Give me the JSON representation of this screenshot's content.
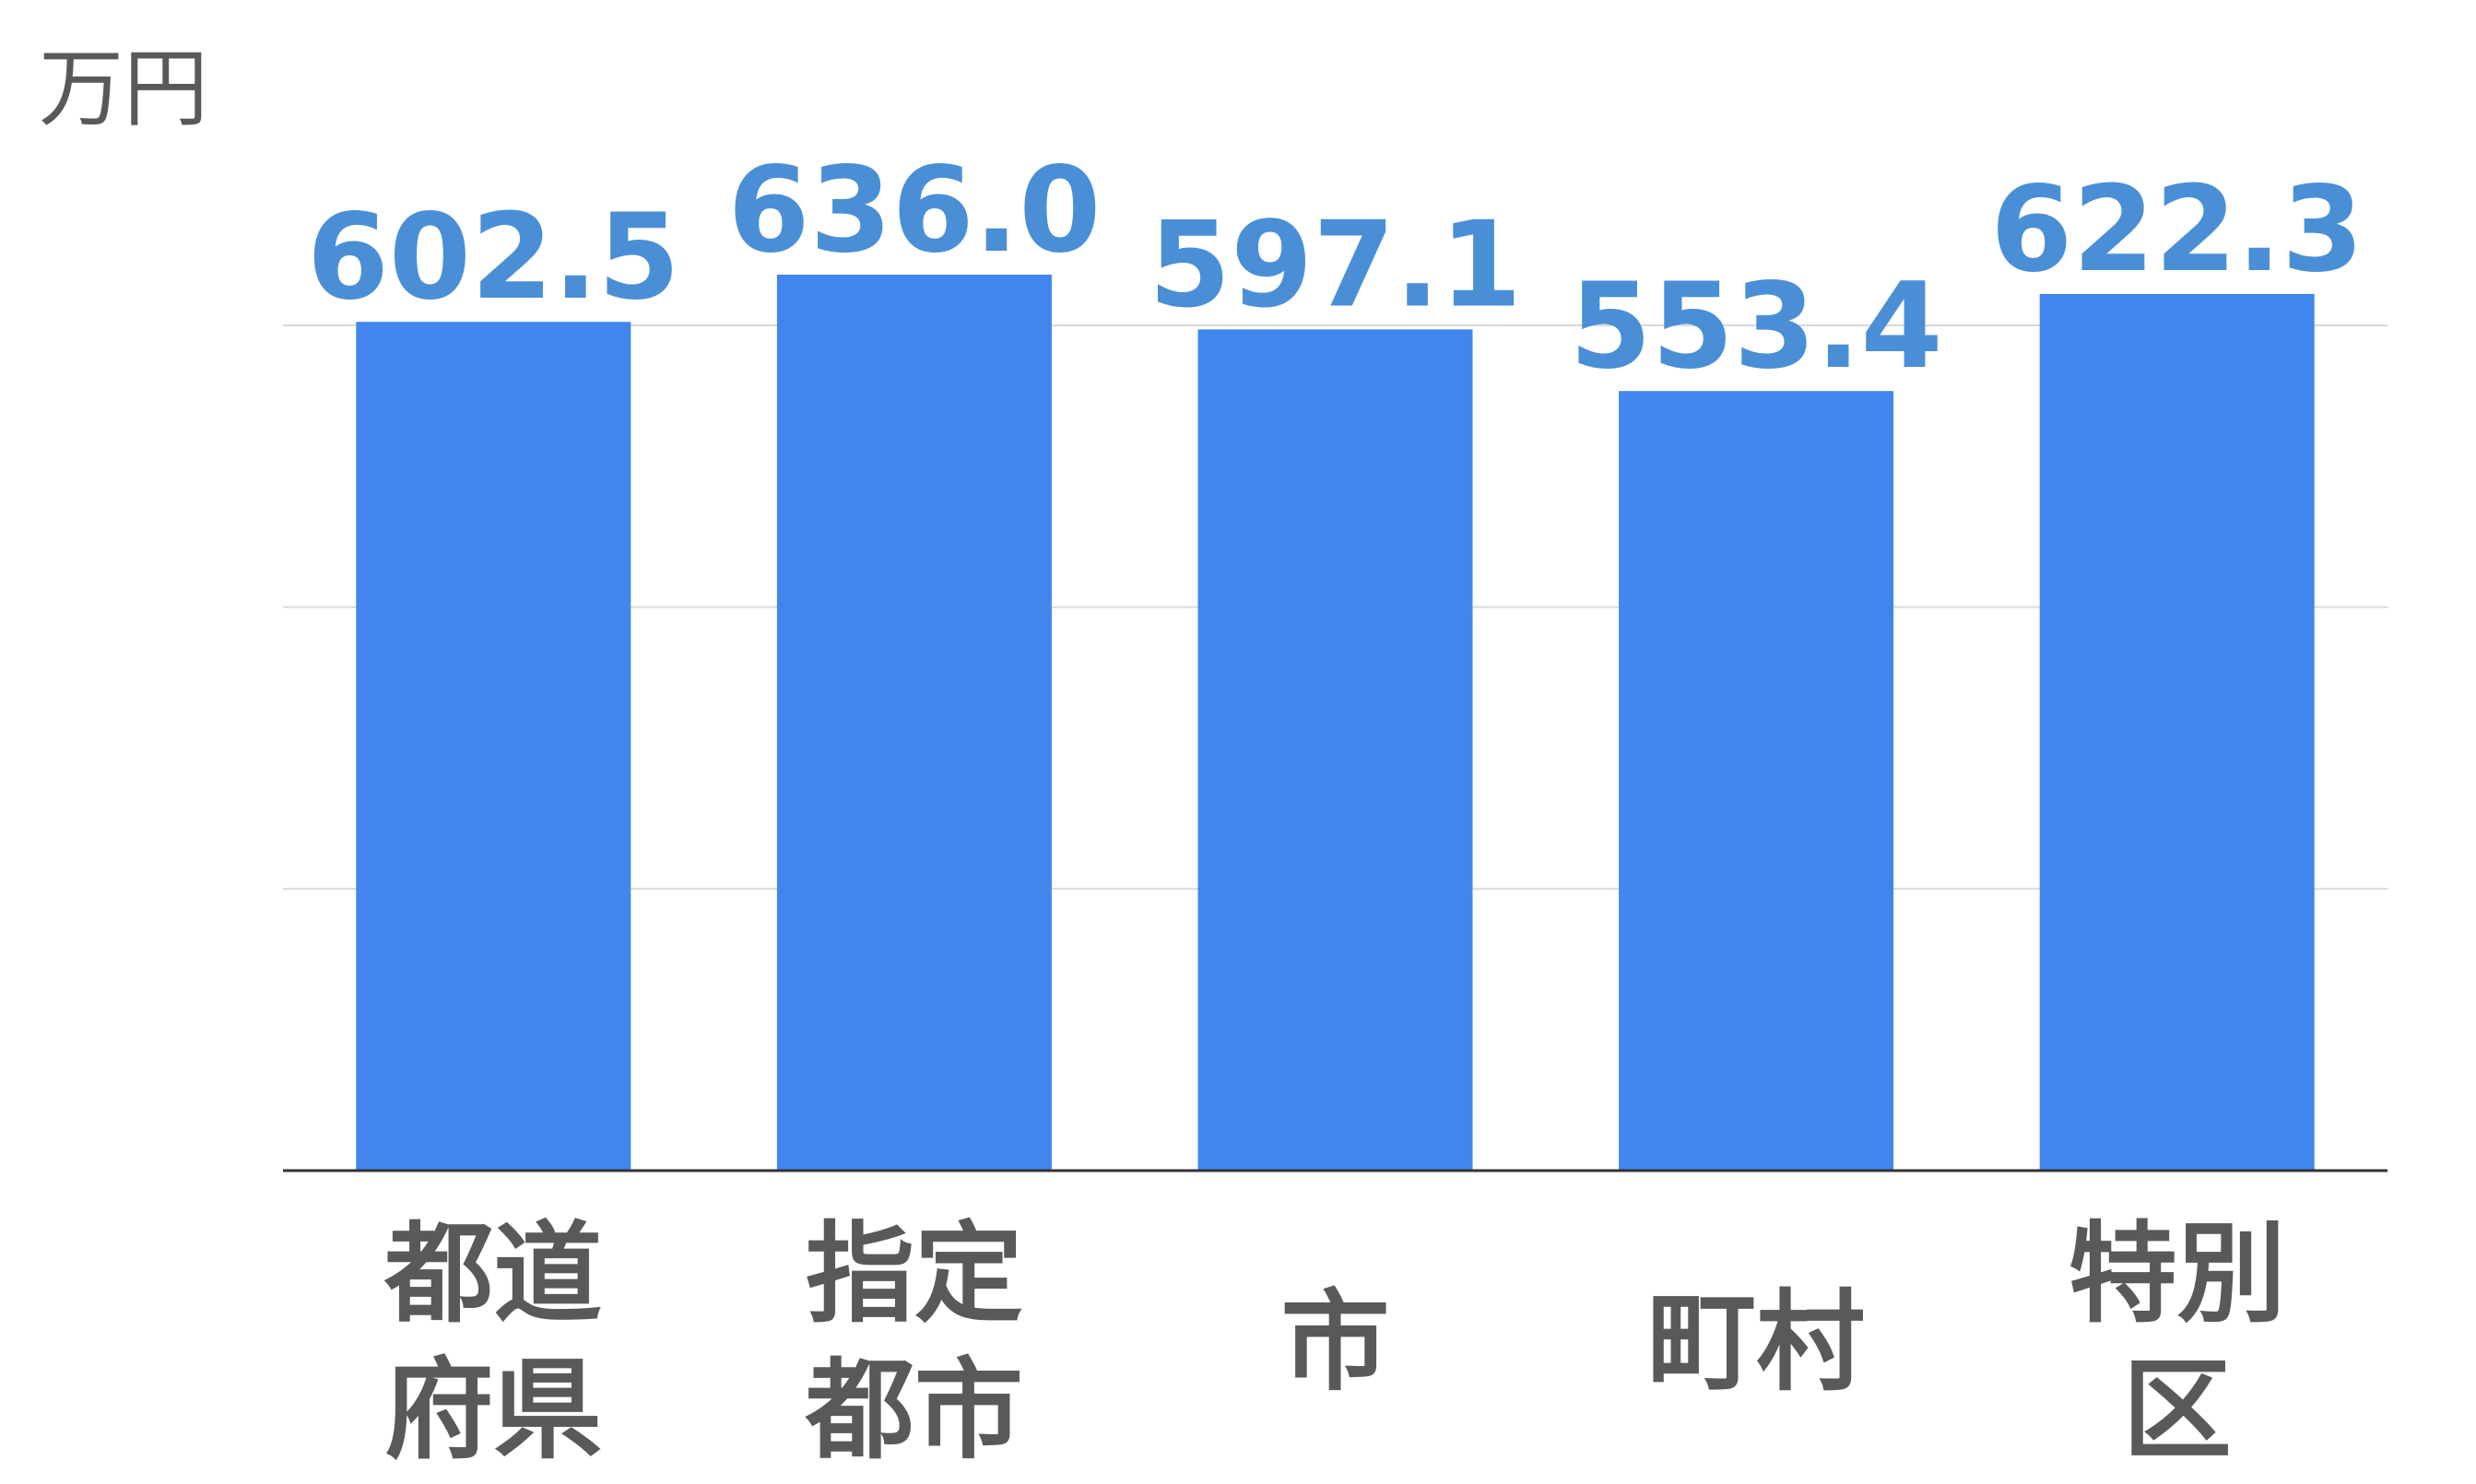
{
  "chart_data": {
    "type": "bar",
    "unit_label": "万円",
    "categories": [
      [
        "都道",
        "府県"
      ],
      [
        "指定",
        "都市"
      ],
      [
        "市"
      ],
      [
        "町村"
      ],
      [
        "特別",
        "区"
      ]
    ],
    "values": [
      602.5,
      636.0,
      597.1,
      553.4,
      622.3
    ],
    "value_labels": [
      "602.5",
      "636.0",
      "597.1",
      "553.4",
      "622.3"
    ],
    "ylim": [
      0,
      600
    ],
    "gridline_count": 3,
    "grid": true,
    "legend": "none",
    "colors": {
      "bar": "#4285ec",
      "value_label": "#4a8fd6",
      "category_label": "#595959"
    }
  }
}
